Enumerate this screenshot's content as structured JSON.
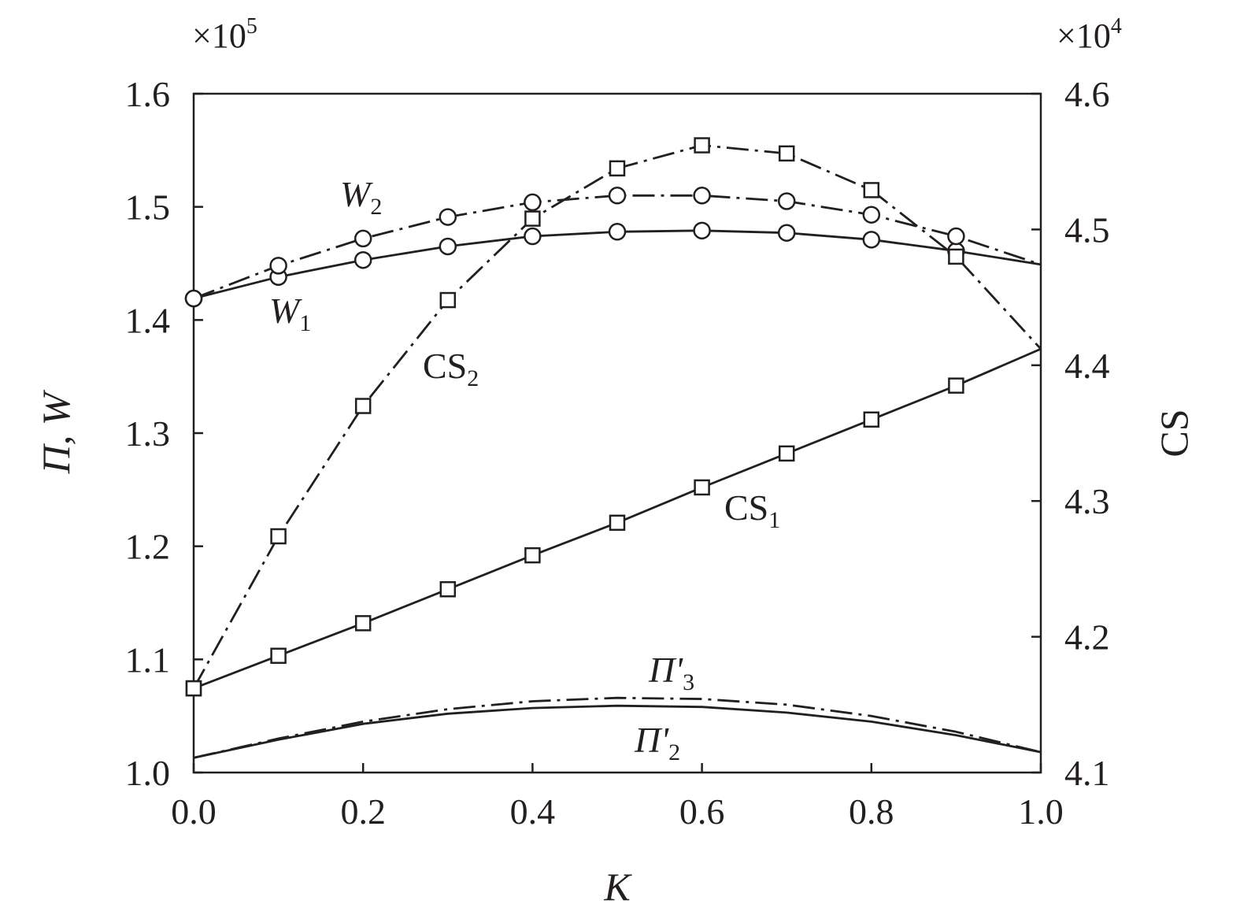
{
  "chart_data": {
    "type": "line",
    "xlabel": "K",
    "ylabel_left": "Π, W",
    "ylabel_right": "CS",
    "left_multiplier": "×10",
    "left_multiplier_exp": "5",
    "right_multiplier": "×10",
    "right_multiplier_exp": "4",
    "xlim": [
      0.0,
      1.0
    ],
    "ylim_left": [
      1.0,
      1.6
    ],
    "ylim_right": [
      4.1,
      4.6
    ],
    "x_ticks": [
      "0.0",
      "0.2",
      "0.4",
      "0.6",
      "0.8",
      "1.0"
    ],
    "y_left_ticks": [
      "1.0",
      "1.1",
      "1.2",
      "1.3",
      "1.4",
      "1.5",
      "1.6"
    ],
    "y_right_ticks": [
      "4.1",
      "4.2",
      "4.3",
      "4.4",
      "4.5",
      "4.6"
    ],
    "grid": false,
    "legend": "none",
    "series": [
      {
        "name": "W₁",
        "label": "W",
        "label_sub": "1",
        "axis": "left",
        "line": "solid",
        "marker": "circle",
        "x": [
          0.0,
          0.1,
          0.2,
          0.3,
          0.4,
          0.5,
          0.6,
          0.7,
          0.8,
          0.9,
          1.0
        ],
        "y": [
          1.419,
          1.438,
          1.453,
          1.465,
          1.474,
          1.478,
          1.479,
          1.477,
          1.471,
          1.461,
          1.449
        ],
        "marked": [
          true,
          true,
          true,
          true,
          true,
          true,
          true,
          true,
          true,
          true,
          false
        ]
      },
      {
        "name": "W₂",
        "label": "W",
        "label_sub": "2",
        "axis": "left",
        "line": "dashdot",
        "marker": "circle",
        "x": [
          0.0,
          0.1,
          0.2,
          0.3,
          0.4,
          0.5,
          0.6,
          0.7,
          0.8,
          0.9,
          1.0
        ],
        "y": [
          1.419,
          1.448,
          1.472,
          1.491,
          1.504,
          1.51,
          1.51,
          1.505,
          1.493,
          1.474,
          1.449
        ],
        "marked": [
          true,
          true,
          true,
          true,
          true,
          true,
          true,
          true,
          true,
          true,
          false
        ]
      },
      {
        "name": "CS₁",
        "label": "CS",
        "label_sub": "1",
        "axis": "right",
        "line": "solid",
        "marker": "square",
        "x": [
          0.0,
          0.1,
          0.2,
          0.3,
          0.4,
          0.5,
          0.6,
          0.7,
          0.8,
          0.9,
          1.0
        ],
        "y": [
          4.162,
          4.186,
          4.21,
          4.235,
          4.26,
          4.284,
          4.31,
          4.335,
          4.36,
          4.385,
          4.412
        ],
        "marked": [
          true,
          true,
          true,
          true,
          true,
          true,
          true,
          true,
          true,
          true,
          false
        ]
      },
      {
        "name": "CS₂",
        "label": "CS",
        "label_sub": "2",
        "axis": "right",
        "line": "dashdot",
        "marker": "square",
        "x": [
          0.0,
          0.1,
          0.2,
          0.3,
          0.4,
          0.5,
          0.6,
          0.7,
          0.8,
          0.9,
          1.0
        ],
        "y": [
          4.162,
          4.274,
          4.37,
          4.448,
          4.508,
          4.545,
          4.562,
          4.556,
          4.529,
          4.48,
          4.412
        ],
        "marked": [
          true,
          true,
          true,
          true,
          true,
          true,
          true,
          true,
          true,
          true,
          false
        ]
      },
      {
        "name": "Π'₂",
        "label": "Π'",
        "label_sub": "2",
        "axis": "left",
        "line": "solid",
        "marker": "none",
        "x": [
          0.0,
          0.1,
          0.2,
          0.3,
          0.4,
          0.5,
          0.6,
          0.7,
          0.8,
          0.9,
          1.0
        ],
        "y": [
          1.013,
          1.029,
          1.043,
          1.052,
          1.057,
          1.059,
          1.058,
          1.053,
          1.045,
          1.033,
          1.018
        ],
        "marked": []
      },
      {
        "name": "Π'₃",
        "label": "Π'",
        "label_sub": "3",
        "axis": "left",
        "line": "dashdot",
        "marker": "none",
        "x": [
          0.0,
          0.1,
          0.2,
          0.3,
          0.4,
          0.5,
          0.6,
          0.7,
          0.8,
          0.9,
          1.0
        ],
        "y": [
          1.013,
          1.03,
          1.045,
          1.056,
          1.063,
          1.066,
          1.065,
          1.06,
          1.05,
          1.036,
          1.018
        ],
        "marked": []
      }
    ]
  }
}
